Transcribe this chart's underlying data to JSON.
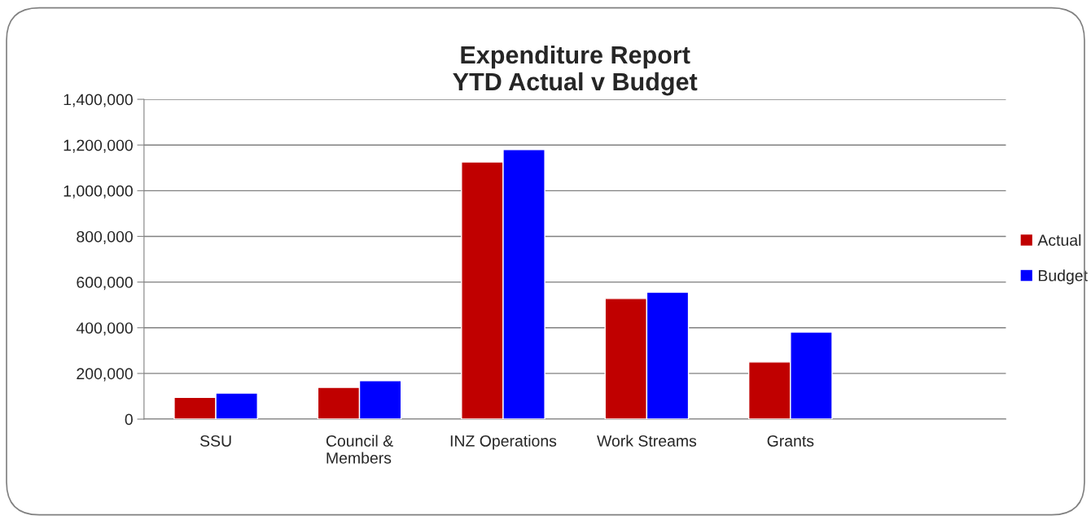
{
  "chart_data": {
    "type": "bar",
    "title": "Expenditure Report\nYTD Actual v Budget",
    "categories": [
      "SSU",
      "Council &\nMembers",
      "INZ Operations",
      "Work Streams",
      "Grants",
      null
    ],
    "series": [
      {
        "name": "Actual",
        "color": "#c00000",
        "values": [
          95000,
          139000,
          1126000,
          528000,
          250000,
          null
        ]
      },
      {
        "name": "Budget",
        "color": "#0000ff",
        "values": [
          114000,
          168000,
          1180000,
          556000,
          381000,
          null
        ]
      }
    ],
    "ylim": [
      0,
      1400000
    ],
    "yticks": [
      {
        "value": 0,
        "label": "0"
      },
      {
        "value": 200000,
        "label": "200,000"
      },
      {
        "value": 400000,
        "label": "400,000"
      },
      {
        "value": 600000,
        "label": "600,000"
      },
      {
        "value": 800000,
        "label": "800,000"
      },
      {
        "value": 1000000,
        "label": "1,000,000"
      },
      {
        "value": 1200000,
        "label": "1,200,000"
      },
      {
        "value": 1400000,
        "label": "1,400,000"
      }
    ],
    "grid": "y",
    "legend": "right"
  }
}
